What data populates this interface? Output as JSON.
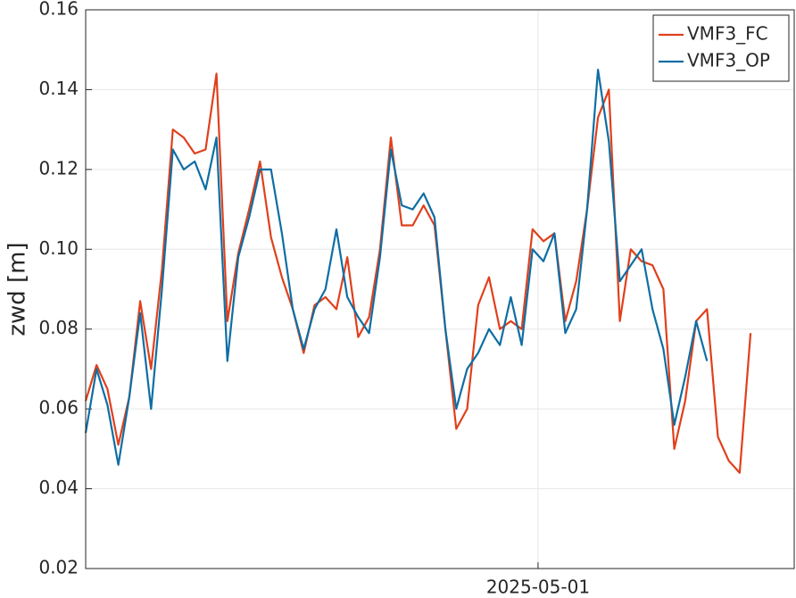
{
  "chart_data": {
    "type": "line",
    "ylabel": "zwd [m]",
    "x": [
      "2025-04-20T15:00",
      "2025-04-20T21:00",
      "2025-04-21T03:00",
      "2025-04-21T09:00",
      "2025-04-21T15:00",
      "2025-04-21T21:00",
      "2025-04-22T03:00",
      "2025-04-22T09:00",
      "2025-04-22T15:00",
      "2025-04-22T21:00",
      "2025-04-23T03:00",
      "2025-04-23T09:00",
      "2025-04-23T15:00",
      "2025-04-23T21:00",
      "2025-04-24T03:00",
      "2025-04-24T09:00",
      "2025-04-24T15:00",
      "2025-04-24T21:00",
      "2025-04-25T03:00",
      "2025-04-25T09:00",
      "2025-04-25T15:00",
      "2025-04-25T21:00",
      "2025-04-26T03:00",
      "2025-04-26T09:00",
      "2025-04-26T15:00",
      "2025-04-26T21:00",
      "2025-04-27T03:00",
      "2025-04-27T09:00",
      "2025-04-27T15:00",
      "2025-04-27T21:00",
      "2025-04-28T03:00",
      "2025-04-28T09:00",
      "2025-04-28T15:00",
      "2025-04-28T21:00",
      "2025-04-29T03:00",
      "2025-04-29T09:00",
      "2025-04-29T15:00",
      "2025-04-29T21:00",
      "2025-04-30T03:00",
      "2025-04-30T09:00",
      "2025-04-30T15:00",
      "2025-04-30T21:00",
      "2025-05-01T03:00",
      "2025-05-01T09:00",
      "2025-05-01T15:00",
      "2025-05-01T21:00",
      "2025-05-02T03:00",
      "2025-05-02T09:00",
      "2025-05-02T15:00",
      "2025-05-02T21:00",
      "2025-05-03T03:00",
      "2025-05-03T09:00",
      "2025-05-03T15:00",
      "2025-05-03T21:00",
      "2025-05-04T03:00",
      "2025-05-04T09:00",
      "2025-05-04T15:00",
      "2025-05-04T21:00",
      "2025-05-05T03:00",
      "2025-05-05T09:00",
      "2025-05-05T15:00",
      "2025-05-05T21:00"
    ],
    "series": [
      {
        "name": "VMF3_FC",
        "color": "#e0401c",
        "values": [
          0.062,
          0.071,
          0.065,
          0.051,
          0.063,
          0.087,
          0.07,
          0.095,
          0.13,
          0.128,
          0.124,
          0.125,
          0.144,
          0.082,
          0.099,
          0.11,
          0.122,
          0.103,
          0.093,
          0.085,
          0.074,
          0.086,
          0.088,
          0.085,
          0.098,
          0.078,
          0.083,
          0.1,
          0.128,
          0.106,
          0.106,
          0.111,
          0.106,
          0.08,
          0.055,
          0.06,
          0.086,
          0.093,
          0.08,
          0.082,
          0.08,
          0.105,
          0.102,
          0.104,
          0.082,
          0.092,
          0.11,
          0.133,
          0.14,
          0.082,
          0.1,
          0.097,
          0.096,
          0.09,
          0.05,
          0.062,
          0.082,
          0.085,
          0.053,
          0.047,
          0.044,
          0.079
        ]
      },
      {
        "name": "VMF3_OP",
        "color": "#0e6ea3",
        "values": [
          0.054,
          0.07,
          0.061,
          0.046,
          0.063,
          0.084,
          0.06,
          0.09,
          0.125,
          0.12,
          0.122,
          0.115,
          0.128,
          0.072,
          0.098,
          0.108,
          0.12,
          0.12,
          0.104,
          0.085,
          0.075,
          0.085,
          0.09,
          0.105,
          0.088,
          0.083,
          0.079,
          0.098,
          0.125,
          0.111,
          0.11,
          0.114,
          0.108,
          0.08,
          0.06,
          0.07,
          0.074,
          0.08,
          0.076,
          0.088,
          0.076,
          0.1,
          0.097,
          0.104,
          0.079,
          0.085,
          0.11,
          0.145,
          0.127,
          0.092,
          0.096,
          0.1,
          0.085,
          0.075,
          0.056,
          0.068,
          0.082,
          0.072,
          null,
          null,
          null,
          null
        ]
      }
    ],
    "xlim": [
      "2025-04-20T15:00",
      "2025-05-06T21:00"
    ],
    "xticks": [
      "2025-05-01"
    ],
    "ylim": [
      0.02,
      0.16
    ],
    "yticks": [
      0.02,
      0.04,
      0.06,
      0.08,
      {
        "value": 0.1,
        "label": "0.10"
      },
      0.12,
      0.14,
      0.16
    ],
    "grid": true,
    "legend": "upper right"
  }
}
